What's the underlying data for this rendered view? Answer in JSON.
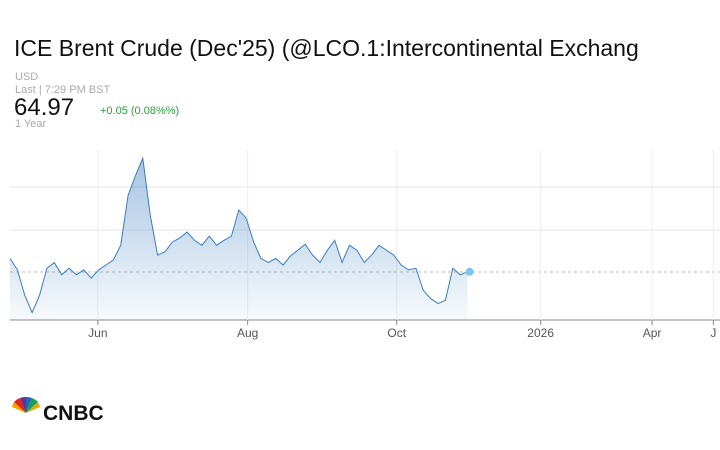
{
  "chart_data": {
    "type": "area",
    "title": "ICE Brent Crude (Dec'25) (@LCO.1:Intercontinental Exchang",
    "currency": "USD",
    "last_label": "Last | 7:29 PM BST",
    "last_price": "64.97",
    "change": "+0.05 (0.08%%)",
    "range_label": "1 Year",
    "brand": "CNBC",
    "color": "#3a7dbf",
    "values": [
      66.6,
      65.2,
      62.1,
      60.0,
      62.1,
      65.4,
      66.1,
      64.6,
      65.4,
      64.6,
      65.2,
      64.2,
      65.2,
      65.8,
      66.4,
      68.2,
      74.3,
      76.7,
      78.8,
      71.9,
      67.0,
      67.4,
      68.6,
      69.1,
      69.8,
      68.8,
      68.2,
      69.3,
      68.2,
      68.8,
      69.3,
      72.5,
      71.5,
      68.6,
      66.6,
      66.1,
      66.6,
      65.8,
      66.9,
      67.6,
      68.3,
      67.0,
      66.1,
      67.6,
      68.8,
      66.1,
      68.2,
      67.6,
      66.1,
      67.0,
      68.2,
      67.6,
      67.0,
      65.8,
      65.2,
      65.4,
      62.7,
      61.7,
      61.1,
      61.5,
      65.4,
      64.6,
      64.97
    ],
    "xlim": [
      0,
      96.2
    ],
    "xticks": [
      {
        "value": 11.9,
        "label": "Jun"
      },
      {
        "value": 32.2,
        "label": "Aug"
      },
      {
        "value": 52.4,
        "label": "Oct"
      },
      {
        "value": 71.9,
        "label": "2026"
      },
      {
        "value": 87.0,
        "label": "Apr"
      },
      {
        "value": 95.3,
        "label": "J"
      }
    ],
    "ylim": [
      59.1,
      79.8
    ]
  }
}
